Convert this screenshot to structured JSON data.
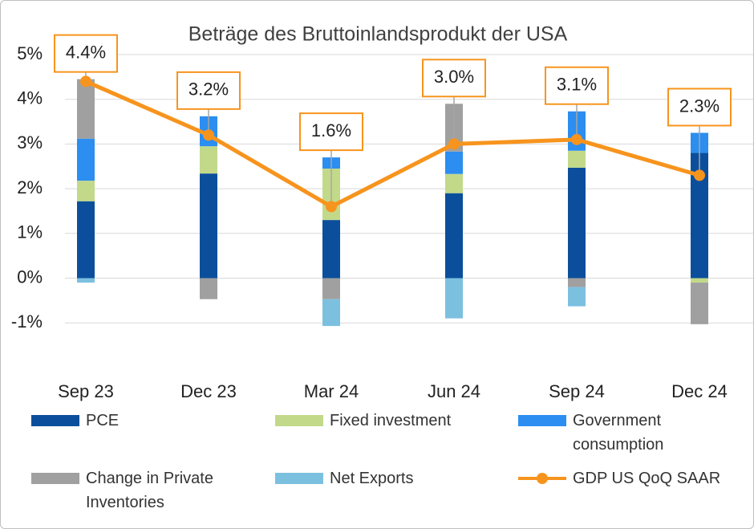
{
  "chart_data": {
    "type": "bar",
    "stacked": true,
    "title": "Beträge des Bruttoinlandsprodukt der USA",
    "categories": [
      "Sep 23",
      "Dec 23",
      "Mar 24",
      "Jun 24",
      "Sep 24",
      "Dec 24"
    ],
    "ylim": [
      -2,
      5
    ],
    "yticks": [
      {
        "value": -1,
        "label": "-1%"
      },
      {
        "value": 0,
        "label": "0%"
      },
      {
        "value": 1,
        "label": "1%"
      },
      {
        "value": 2,
        "label": "2%"
      },
      {
        "value": 3,
        "label": "3%"
      },
      {
        "value": 4,
        "label": "4%"
      },
      {
        "value": 5,
        "label": "5%"
      }
    ],
    "grid": true,
    "series": [
      {
        "name": "PCE",
        "color": "#0b4f9c",
        "values": [
          1.72,
          2.34,
          1.3,
          1.9,
          2.47,
          2.8
        ]
      },
      {
        "name": "Fixed investment",
        "color": "#c3d98a",
        "values": [
          0.46,
          0.61,
          1.15,
          0.43,
          0.38,
          -0.1
        ]
      },
      {
        "name": "Government consumption",
        "color": "#2b8ef0",
        "values": [
          0.94,
          0.67,
          0.25,
          0.5,
          0.88,
          0.45
        ]
      },
      {
        "name": "Change in Private Inventories",
        "color": "#a0a0a0",
        "values": [
          1.33,
          -0.47,
          -0.47,
          1.07,
          -0.2,
          -0.93
        ]
      },
      {
        "name": "Net Exports",
        "color": "#7cc0e0",
        "values": [
          -0.1,
          0,
          -0.6,
          -0.9,
          -0.43,
          0
        ]
      },
      {
        "name": "GDP US QoQ SAAR",
        "color": "#f7941d",
        "type": "line",
        "values": [
          4.4,
          3.2,
          1.6,
          3.0,
          3.1,
          2.3
        ],
        "value_labels": [
          "4.4%",
          "3.2%",
          "1.6%",
          "3.0%",
          "3.1%",
          "2.3%"
        ]
      }
    ]
  }
}
